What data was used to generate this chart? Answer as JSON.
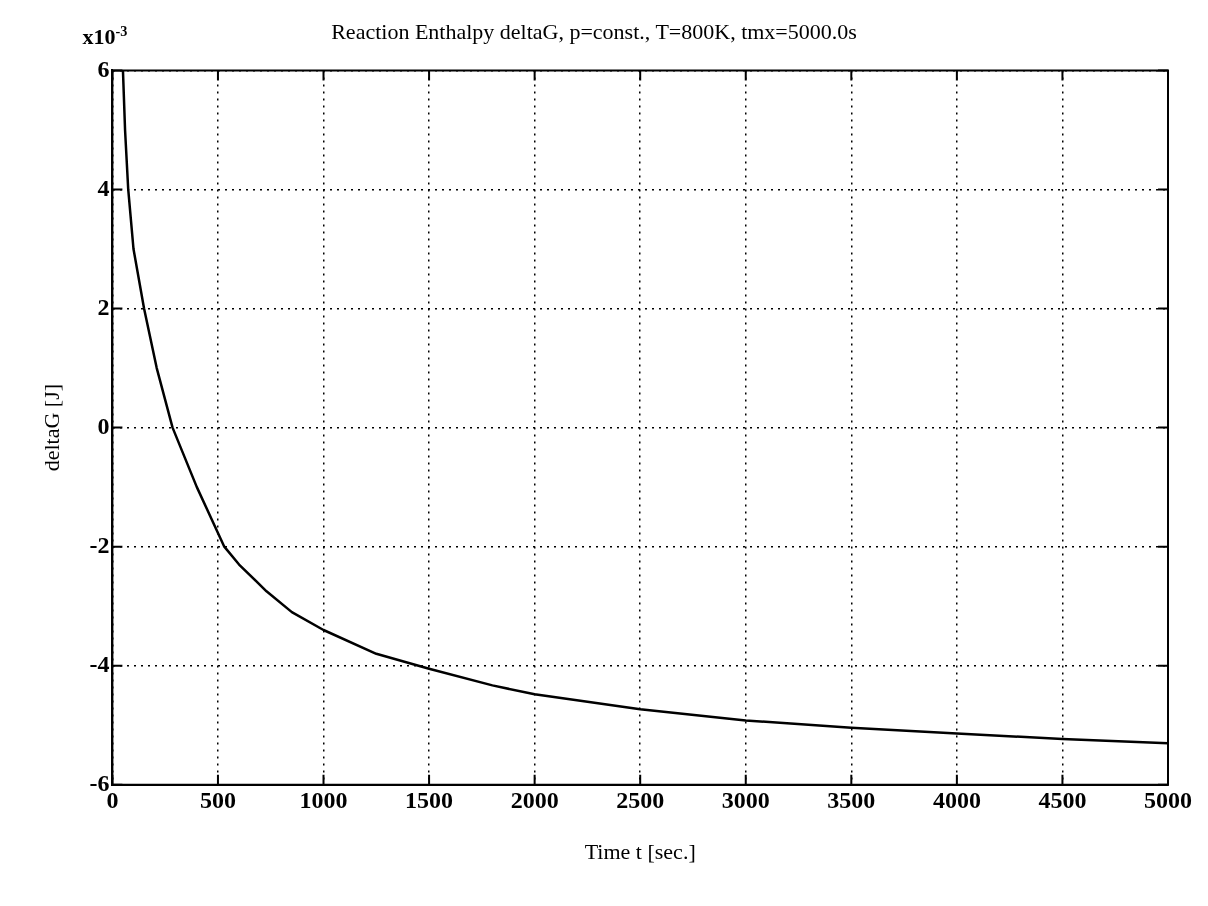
{
  "chart_data": {
    "type": "line",
    "title": "Reaction Enthalpy deltaG, p=const., T=800K, tmx=5000.0s",
    "xlabel": "Time t [sec.]",
    "ylabel": "deltaG [J]",
    "annotations": [
      "x10$^{-3}$"
    ],
    "x": [
      50,
      60,
      75,
      100,
      150,
      210,
      285,
      400,
      530,
      600,
      730,
      850,
      1000,
      1250,
      1500,
      1800,
      2000,
      2500,
      3000,
      3500,
      4000,
      4500,
      5000
    ],
    "series": [
      {
        "color": "#000000",
        "values": [
          6,
          5,
          4,
          3,
          2,
          1,
          0,
          -1,
          -2,
          -2.3,
          -2.75,
          -3.1,
          -3.4,
          -3.8,
          -4.05,
          -4.33,
          -4.48,
          -4.73,
          -4.92,
          -5.04,
          -5.14,
          -5.23,
          -5.3
        ]
      }
    ],
    "xlim": [
      0,
      5000
    ],
    "xticks": [
      0,
      500,
      1000,
      1500,
      2000,
      2500,
      3000,
      3500,
      4000,
      4500,
      5000
    ],
    "ylim": [
      -6,
      6
    ],
    "yticks": [
      -6,
      -4,
      -2,
      0,
      2,
      4,
      6
    ],
    "grid": true,
    "legend": false,
    "marker": "none",
    "line_style": "solid"
  }
}
